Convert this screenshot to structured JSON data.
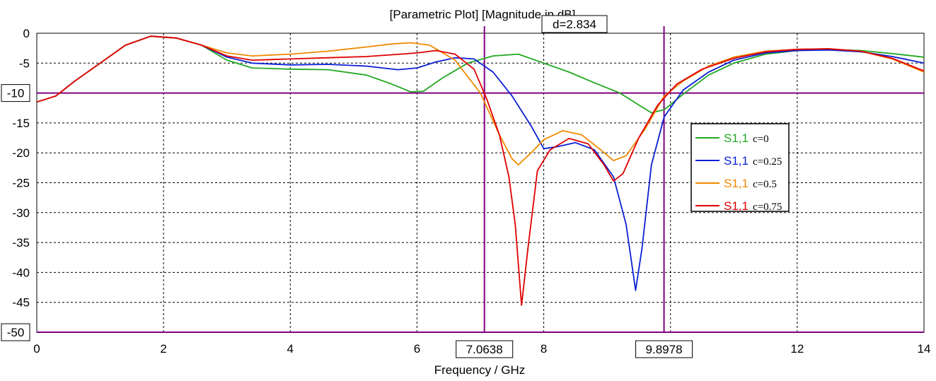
{
  "chart_data": {
    "type": "line",
    "title": "[Parametric Plot] [Magnitude in dB]",
    "xlabel": "Frequency / GHz",
    "ylabel": "",
    "xlim": [
      0,
      14
    ],
    "ylim": [
      -50,
      0
    ],
    "x_ticks": [
      "0",
      "2",
      "4",
      "6",
      "8",
      "10",
      "12",
      "14"
    ],
    "y_ticks": [
      "0",
      "-5",
      "-10",
      "-15",
      "-20",
      "-25",
      "-30",
      "-35",
      "-40",
      "-45",
      "-50"
    ],
    "grid": true,
    "legend_position": "right",
    "markers": {
      "vertical": [
        {
          "value": 7.0638,
          "label": "7.0638"
        },
        {
          "value": 9.8978,
          "label": "9.8978"
        }
      ],
      "horizontal": [
        {
          "value": -10,
          "label": "-10"
        },
        {
          "value": -50,
          "label": "-50"
        }
      ],
      "delta_label": "d=2.834"
    },
    "series": [
      {
        "name": "S1,1",
        "param": "c=0",
        "color": "#22a822",
        "points": [
          [
            0,
            -11.5
          ],
          [
            0.3,
            -10.5
          ],
          [
            0.6,
            -8
          ],
          [
            1,
            -5
          ],
          [
            1.4,
            -2
          ],
          [
            1.8,
            -0.5
          ],
          [
            2.2,
            -0.8
          ],
          [
            2.6,
            -2
          ],
          [
            3,
            -4.5
          ],
          [
            3.4,
            -5.8
          ],
          [
            4,
            -6
          ],
          [
            4.6,
            -6.1
          ],
          [
            5.2,
            -7
          ],
          [
            5.6,
            -8.5
          ],
          [
            5.9,
            -9.8
          ],
          [
            6.1,
            -9.7
          ],
          [
            6.4,
            -7.5
          ],
          [
            6.8,
            -5
          ],
          [
            7.2,
            -3.8
          ],
          [
            7.6,
            -3.5
          ],
          [
            8,
            -5
          ],
          [
            8.4,
            -6.5
          ],
          [
            8.8,
            -8.3
          ],
          [
            9.2,
            -10
          ],
          [
            9.5,
            -12
          ],
          [
            9.7,
            -13.3
          ],
          [
            9.9,
            -12.8
          ],
          [
            10.2,
            -10.2
          ],
          [
            10.6,
            -7
          ],
          [
            11,
            -5
          ],
          [
            11.5,
            -3.5
          ],
          [
            12,
            -2.9
          ],
          [
            12.5,
            -2.7
          ],
          [
            13,
            -2.9
          ],
          [
            13.5,
            -3.4
          ],
          [
            14,
            -4
          ]
        ]
      },
      {
        "name": "S1,1",
        "param": "c=0.25",
        "color": "#0a1fd4",
        "points": [
          [
            0,
            -11.5
          ],
          [
            0.3,
            -10.5
          ],
          [
            0.6,
            -8
          ],
          [
            1,
            -5
          ],
          [
            1.4,
            -2
          ],
          [
            1.8,
            -0.5
          ],
          [
            2.2,
            -0.8
          ],
          [
            2.6,
            -2
          ],
          [
            3,
            -4
          ],
          [
            3.4,
            -5
          ],
          [
            4,
            -5.3
          ],
          [
            4.6,
            -5.2
          ],
          [
            5.2,
            -5.5
          ],
          [
            5.7,
            -6.1
          ],
          [
            6,
            -5.8
          ],
          [
            6.3,
            -4.8
          ],
          [
            6.6,
            -4.1
          ],
          [
            6.9,
            -4.3
          ],
          [
            7.2,
            -6.5
          ],
          [
            7.5,
            -10.5
          ],
          [
            7.8,
            -15.5
          ],
          [
            8,
            -19.3
          ],
          [
            8.2,
            -19
          ],
          [
            8.5,
            -18.3
          ],
          [
            8.8,
            -19.5
          ],
          [
            9.1,
            -24
          ],
          [
            9.3,
            -32
          ],
          [
            9.45,
            -43
          ],
          [
            9.55,
            -36
          ],
          [
            9.7,
            -22
          ],
          [
            9.9,
            -14
          ],
          [
            10.2,
            -9.5
          ],
          [
            10.6,
            -6.5
          ],
          [
            11,
            -4.5
          ],
          [
            11.5,
            -3.3
          ],
          [
            12,
            -2.9
          ],
          [
            12.5,
            -2.8
          ],
          [
            13,
            -3.1
          ],
          [
            13.5,
            -3.9
          ],
          [
            14,
            -5
          ]
        ]
      },
      {
        "name": "S1,1",
        "param": "c=0.5",
        "color": "#f08a00",
        "points": [
          [
            0,
            -11.5
          ],
          [
            0.3,
            -10.5
          ],
          [
            0.6,
            -8
          ],
          [
            1,
            -5
          ],
          [
            1.4,
            -2
          ],
          [
            1.8,
            -0.5
          ],
          [
            2.2,
            -0.8
          ],
          [
            2.6,
            -2
          ],
          [
            3,
            -3.3
          ],
          [
            3.4,
            -3.8
          ],
          [
            4,
            -3.5
          ],
          [
            4.6,
            -3
          ],
          [
            5.2,
            -2.3
          ],
          [
            5.6,
            -1.8
          ],
          [
            5.9,
            -1.6
          ],
          [
            6.2,
            -2
          ],
          [
            6.6,
            -4.5
          ],
          [
            7,
            -10
          ],
          [
            7.3,
            -17
          ],
          [
            7.5,
            -21
          ],
          [
            7.6,
            -22
          ],
          [
            7.8,
            -20
          ],
          [
            8,
            -17.8
          ],
          [
            8.3,
            -16.3
          ],
          [
            8.6,
            -17
          ],
          [
            8.9,
            -19.5
          ],
          [
            9.1,
            -21.3
          ],
          [
            9.3,
            -20.5
          ],
          [
            9.6,
            -16
          ],
          [
            9.9,
            -10.5
          ],
          [
            10.2,
            -8
          ],
          [
            10.6,
            -5.5
          ],
          [
            11,
            -4
          ],
          [
            11.5,
            -3
          ],
          [
            12,
            -2.7
          ],
          [
            12.5,
            -2.6
          ],
          [
            13,
            -3
          ],
          [
            13.5,
            -4.3
          ],
          [
            14,
            -6.5
          ]
        ]
      },
      {
        "name": "S1,1",
        "param": "c=0.75",
        "color": "#e00000",
        "points": [
          [
            0,
            -11.5
          ],
          [
            0.3,
            -10.5
          ],
          [
            0.6,
            -8
          ],
          [
            1,
            -5
          ],
          [
            1.4,
            -2
          ],
          [
            1.8,
            -0.5
          ],
          [
            2.2,
            -0.8
          ],
          [
            2.6,
            -2
          ],
          [
            3,
            -3.8
          ],
          [
            3.4,
            -4.5
          ],
          [
            4,
            -4.3
          ],
          [
            4.6,
            -4.1
          ],
          [
            5.2,
            -3.9
          ],
          [
            5.6,
            -3.6
          ],
          [
            6,
            -3.3
          ],
          [
            6.3,
            -2.9
          ],
          [
            6.6,
            -3.5
          ],
          [
            6.9,
            -6
          ],
          [
            7.1,
            -11
          ],
          [
            7.3,
            -17
          ],
          [
            7.45,
            -24
          ],
          [
            7.55,
            -32
          ],
          [
            7.65,
            -45.5
          ],
          [
            7.75,
            -36
          ],
          [
            7.9,
            -23
          ],
          [
            8.1,
            -19.5
          ],
          [
            8.4,
            -17.6
          ],
          [
            8.7,
            -18.5
          ],
          [
            8.95,
            -22
          ],
          [
            9.1,
            -24.7
          ],
          [
            9.25,
            -23.5
          ],
          [
            9.5,
            -17.5
          ],
          [
            9.8,
            -12
          ],
          [
            10.1,
            -8.5
          ],
          [
            10.5,
            -6
          ],
          [
            11,
            -4.2
          ],
          [
            11.5,
            -3.1
          ],
          [
            12,
            -2.7
          ],
          [
            12.5,
            -2.6
          ],
          [
            13,
            -3
          ],
          [
            13.5,
            -4.2
          ],
          [
            14,
            -6.3
          ]
        ]
      }
    ]
  }
}
